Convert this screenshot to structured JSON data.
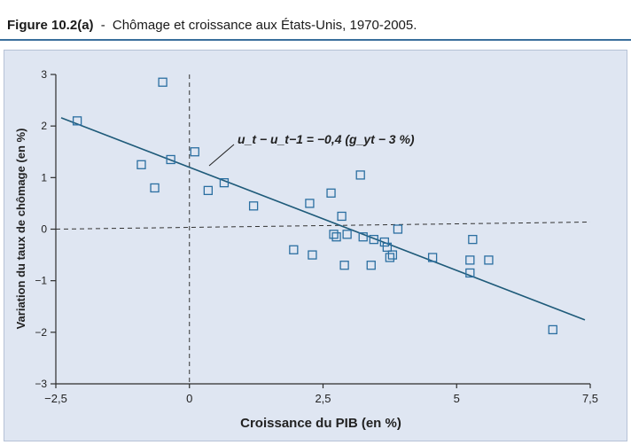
{
  "title": {
    "figure_label": "Figure 10.2(a)",
    "separator": "-",
    "text": "Chômage et croissance aux États-Unis, 1970-2005."
  },
  "chart_data": {
    "type": "scatter",
    "xlabel": "Croissance du PIB (en %)",
    "ylabel": "Variation du taux de chômage (en %)",
    "xlim": [
      -2.5,
      7.5
    ],
    "ylim": [
      -3,
      3
    ],
    "x_ticks": [
      "-2,5",
      "0",
      "2,5",
      "5",
      "7,5"
    ],
    "y_ticks": [
      "3",
      "2",
      "1",
      "0",
      "-1",
      "-2",
      "-3"
    ],
    "x_tick_values": [
      -2.5,
      0,
      2.5,
      5,
      7.5
    ],
    "y_tick_values": [
      3,
      2,
      1,
      0,
      -1,
      -2,
      -3
    ],
    "reference_lines": {
      "vertical_x": 0,
      "horizontal_y": 0,
      "style": "dashed"
    },
    "regression": {
      "label": "u_t − u_t−1 = −0,4 (g_yt − 3 %)",
      "slope": -0.4,
      "intercept": 1.2,
      "x_range": [
        -2.4,
        7.4
      ]
    },
    "points": [
      {
        "x": -2.1,
        "y": 2.1
      },
      {
        "x": -0.5,
        "y": 2.85
      },
      {
        "x": -0.9,
        "y": 1.25
      },
      {
        "x": -0.65,
        "y": 0.8
      },
      {
        "x": -0.35,
        "y": 1.35
      },
      {
        "x": 0.1,
        "y": 1.5
      },
      {
        "x": 0.35,
        "y": 0.75
      },
      {
        "x": 0.65,
        "y": 0.9
      },
      {
        "x": 1.2,
        "y": 0.45
      },
      {
        "x": 2.25,
        "y": 0.5
      },
      {
        "x": 2.65,
        "y": 0.7
      },
      {
        "x": 2.7,
        "y": -0.1
      },
      {
        "x": 2.75,
        "y": -0.15
      },
      {
        "x": 2.85,
        "y": 0.25
      },
      {
        "x": 2.95,
        "y": -0.1
      },
      {
        "x": 3.2,
        "y": 1.05
      },
      {
        "x": 3.25,
        "y": -0.15
      },
      {
        "x": 3.45,
        "y": -0.2
      },
      {
        "x": 3.65,
        "y": -0.25
      },
      {
        "x": 3.7,
        "y": -0.35
      },
      {
        "x": 3.75,
        "y": -0.55
      },
      {
        "x": 3.8,
        "y": -0.5
      },
      {
        "x": 3.9,
        "y": 0.0
      },
      {
        "x": 1.95,
        "y": -0.4
      },
      {
        "x": 2.3,
        "y": -0.5
      },
      {
        "x": 2.9,
        "y": -0.7
      },
      {
        "x": 3.4,
        "y": -0.7
      },
      {
        "x": 4.55,
        "y": -0.55
      },
      {
        "x": 5.25,
        "y": -0.6
      },
      {
        "x": 5.3,
        "y": -0.2
      },
      {
        "x": 5.25,
        "y": -0.85
      },
      {
        "x": 5.6,
        "y": -0.6
      },
      {
        "x": 6.8,
        "y": -1.95
      }
    ],
    "colors": {
      "line": "#1f5b7a",
      "marker": "#2b6fa1",
      "panel": "#dfe6f2",
      "axis": "#2d2d2d",
      "title_rule": "#3a6f9c"
    }
  }
}
